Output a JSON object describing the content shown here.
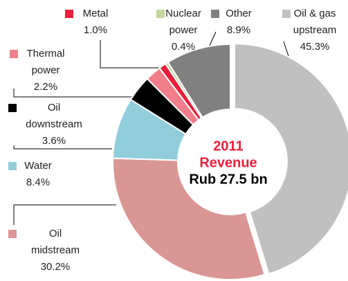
{
  "chart_data": {
    "type": "donut",
    "categories": [
      "Oil & gas upstream",
      "Oil midstream",
      "Water",
      "Oil downstream",
      "Thermal power",
      "Metal",
      "Nuclear power",
      "Other"
    ],
    "values": [
      45.3,
      30.2,
      8.4,
      3.6,
      2.2,
      1.0,
      0.4,
      8.9
    ],
    "value_labels": [
      "45.3%",
      "30.2%",
      "8.4%",
      "3.6%",
      "2.2%",
      "1.0%",
      "0.4%",
      "8.9%"
    ],
    "colors": [
      "#c0c0c0",
      "#d99694",
      "#92cddc",
      "#000000",
      "#f07f8a",
      "#e8203a",
      "#c3d69b",
      "#808080"
    ],
    "center_label": {
      "year": "2011",
      "title": "Revenue",
      "total": "Rub 27.5 bn"
    }
  }
}
